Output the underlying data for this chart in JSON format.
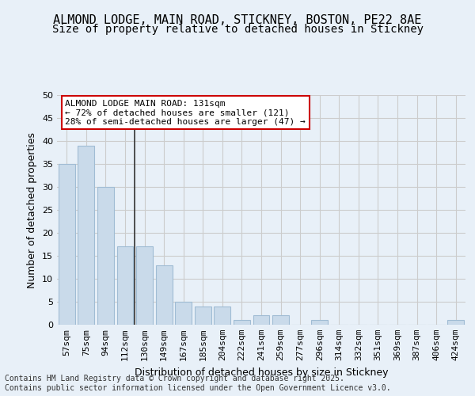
{
  "title1": "ALMOND LODGE, MAIN ROAD, STICKNEY, BOSTON, PE22 8AE",
  "title2": "Size of property relative to detached houses in Stickney",
  "xlabel": "Distribution of detached houses by size in Stickney",
  "ylabel": "Number of detached properties",
  "categories": [
    "57sqm",
    "75sqm",
    "94sqm",
    "112sqm",
    "130sqm",
    "149sqm",
    "167sqm",
    "185sqm",
    "204sqm",
    "222sqm",
    "241sqm",
    "259sqm",
    "277sqm",
    "296sqm",
    "314sqm",
    "332sqm",
    "351sqm",
    "369sqm",
    "387sqm",
    "406sqm",
    "424sqm"
  ],
  "values": [
    35,
    39,
    30,
    17,
    17,
    13,
    5,
    4,
    4,
    1,
    2,
    2,
    0,
    1,
    0,
    0,
    0,
    0,
    0,
    0,
    1
  ],
  "bar_color": "#c9daea",
  "bar_edge_color": "#a0bcd4",
  "bar_linewidth": 0.8,
  "vline_position": 3.5,
  "vline_color": "#333333",
  "vline_linewidth": 1.2,
  "ylim": [
    0,
    50
  ],
  "yticks": [
    0,
    5,
    10,
    15,
    20,
    25,
    30,
    35,
    40,
    45,
    50
  ],
  "grid_color": "#cccccc",
  "bg_color": "#e8f0f8",
  "annotation_title": "ALMOND LODGE MAIN ROAD: 131sqm",
  "annotation_line1": "← 72% of detached houses are smaller (121)",
  "annotation_line2": "28% of semi-detached houses are larger (47) →",
  "annotation_box_color": "#ffffff",
  "annotation_border_color": "#cc0000",
  "footer_line1": "Contains HM Land Registry data © Crown copyright and database right 2025.",
  "footer_line2": "Contains public sector information licensed under the Open Government Licence v3.0.",
  "title_fontsize": 11,
  "subtitle_fontsize": 10,
  "axis_label_fontsize": 9,
  "tick_fontsize": 8,
  "annotation_fontsize": 8,
  "footer_fontsize": 7
}
